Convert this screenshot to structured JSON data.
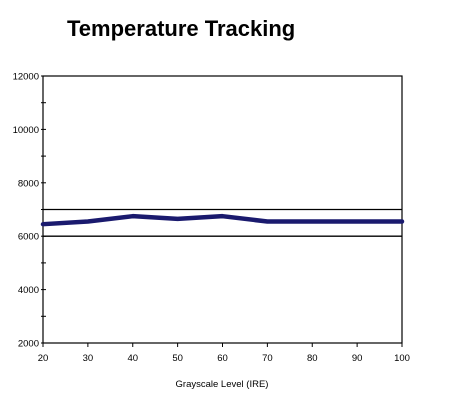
{
  "chart_data": {
    "type": "line",
    "title": "Temperature Tracking",
    "xlabel": "Grayscale Level (IRE)",
    "ylabel": "",
    "xlim": [
      20,
      100
    ],
    "ylim": [
      2000,
      12000
    ],
    "x_ticks": [
      20,
      30,
      40,
      50,
      60,
      70,
      80,
      90,
      100
    ],
    "y_ticks": [
      2000,
      4000,
      6000,
      8000,
      10000,
      12000
    ],
    "grid": false,
    "reference_lines": [
      {
        "y": 7000
      },
      {
        "y": 6000
      }
    ],
    "series": [
      {
        "color": "#1a1a6e",
        "x": [
          20,
          30,
          40,
          50,
          60,
          70,
          80,
          90,
          100
        ],
        "y": [
          6450,
          6550,
          6750,
          6650,
          6750,
          6550,
          6550,
          6550,
          6550
        ]
      }
    ]
  }
}
